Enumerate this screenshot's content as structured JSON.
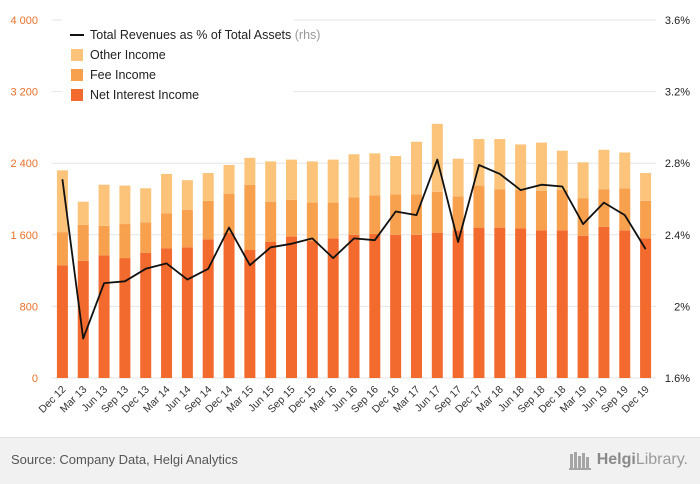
{
  "chart_data": {
    "type": "bar",
    "categories": [
      "Dec 12",
      "Mar 13",
      "Jun 13",
      "Sep 13",
      "Dec 13",
      "Mar 14",
      "Jun 14",
      "Sep 14",
      "Dec 14",
      "Mar 15",
      "Jun 15",
      "Sep 15",
      "Dec 15",
      "Mar 16",
      "Jun 16",
      "Sep 16",
      "Dec 16",
      "Mar 17",
      "Jun 17",
      "Sep 17",
      "Dec 17",
      "Mar 18",
      "Jun 18",
      "Sep 18",
      "Dec 18",
      "Mar 19",
      "Jun 19",
      "Sep 19",
      "Dec 19"
    ],
    "series": [
      {
        "name": "Net Interest Income",
        "type": "stacked-bar",
        "color": "#f26a2e",
        "values": [
          1260,
          1310,
          1370,
          1340,
          1400,
          1450,
          1460,
          1550,
          1620,
          1430,
          1520,
          1580,
          1530,
          1560,
          1600,
          1610,
          1600,
          1600,
          1620,
          1650,
          1680,
          1680,
          1670,
          1650,
          1650,
          1590,
          1690,
          1650,
          1560
        ]
      },
      {
        "name": "Fee Income",
        "type": "stacked-bar",
        "color": "#f7a04d",
        "values": [
          370,
          400,
          330,
          380,
          340,
          390,
          420,
          430,
          440,
          730,
          450,
          410,
          430,
          400,
          420,
          430,
          450,
          450,
          460,
          380,
          470,
          430,
          430,
          440,
          450,
          420,
          420,
          470,
          420
        ]
      },
      {
        "name": "Other Income",
        "type": "stacked-bar",
        "color": "#fbc47a",
        "values": [
          690,
          260,
          460,
          430,
          380,
          440,
          330,
          310,
          320,
          300,
          450,
          450,
          460,
          480,
          480,
          470,
          430,
          590,
          760,
          420,
          520,
          560,
          510,
          540,
          440,
          400,
          440,
          400,
          310
        ]
      },
      {
        "name": "Total Revenues as % of Total Assets",
        "axis_note": "(rhs)",
        "type": "line",
        "color": "#111111",
        "axis": "right",
        "values": [
          2.71,
          1.82,
          2.13,
          2.14,
          2.21,
          2.24,
          2.15,
          2.21,
          2.44,
          2.23,
          2.33,
          2.35,
          2.38,
          2.27,
          2.38,
          2.37,
          2.53,
          2.51,
          2.82,
          2.36,
          2.79,
          2.74,
          2.65,
          2.68,
          2.67,
          2.46,
          2.58,
          2.51,
          2.32
        ]
      }
    ],
    "y_left": {
      "ylim": [
        0,
        4000
      ],
      "ticks": [
        "0",
        "800",
        "1 600",
        "2 400",
        "3 200",
        "4 000"
      ],
      "tick_values": [
        0,
        800,
        1600,
        2400,
        3200,
        4000
      ],
      "tick_color": "#e8702a"
    },
    "y_right": {
      "ylim": [
        1.6,
        3.6
      ],
      "ticks": [
        "1.6%",
        "2%",
        "2.4%",
        "2.8%",
        "3.2%",
        "3.6%"
      ],
      "tick_values": [
        1.6,
        2.0,
        2.4,
        2.8,
        3.2,
        3.6
      ]
    },
    "grid": true,
    "legend_placement": "top-left",
    "title": "",
    "xlabel": "",
    "ylabel": ""
  },
  "footer": {
    "source": "Source: Company Data, Helgi Analytics",
    "brand_bold": "Helgi",
    "brand_rest": "Library."
  }
}
